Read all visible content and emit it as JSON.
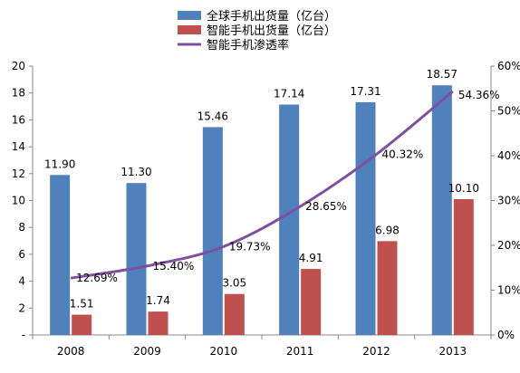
{
  "chart_data": {
    "type": "bar",
    "categories": [
      "2008",
      "2009",
      "2010",
      "2011",
      "2012",
      "2013"
    ],
    "series": [
      {
        "name": "全球手机出货量（亿台）",
        "kind": "bar",
        "axis": "left",
        "color": "#4f81bd",
        "values": [
          11.9,
          11.3,
          15.46,
          17.14,
          17.31,
          18.57
        ],
        "labels": [
          "11.90",
          "11.30",
          "15.46",
          "17.14",
          "17.31",
          "18.57"
        ]
      },
      {
        "name": "智能手机出货量（亿台）",
        "kind": "bar",
        "axis": "left",
        "color": "#c0504d",
        "values": [
          1.51,
          1.74,
          3.05,
          4.91,
          6.98,
          10.1
        ],
        "labels": [
          "1.51",
          "1.74",
          "3.05",
          "4.91",
          "6.98",
          "10.10"
        ]
      },
      {
        "name": "智能手机渗透率",
        "kind": "line",
        "axis": "right",
        "color": "#7f4fa0",
        "values": [
          12.69,
          15.4,
          19.73,
          28.65,
          40.32,
          54.36
        ],
        "labels": [
          "12.69%",
          "15.40%",
          "19.73%",
          "28.65%",
          "40.32%",
          "54.36%"
        ]
      }
    ],
    "left_axis": {
      "ylim": [
        0,
        20
      ],
      "ticks": [
        0,
        2,
        4,
        6,
        8,
        10,
        12,
        14,
        16,
        18,
        20
      ],
      "tick_labels": [
        "-",
        "2",
        "4",
        "6",
        "8",
        "10",
        "12",
        "14",
        "16",
        "18",
        "20"
      ]
    },
    "right_axis": {
      "ylim": [
        0,
        60
      ],
      "ticks": [
        0,
        10,
        20,
        30,
        40,
        50,
        60
      ],
      "tick_labels": [
        "0%",
        "10%",
        "20%",
        "30%",
        "40%",
        "50%",
        "60%"
      ]
    },
    "grid": false,
    "legend": "top-center"
  }
}
